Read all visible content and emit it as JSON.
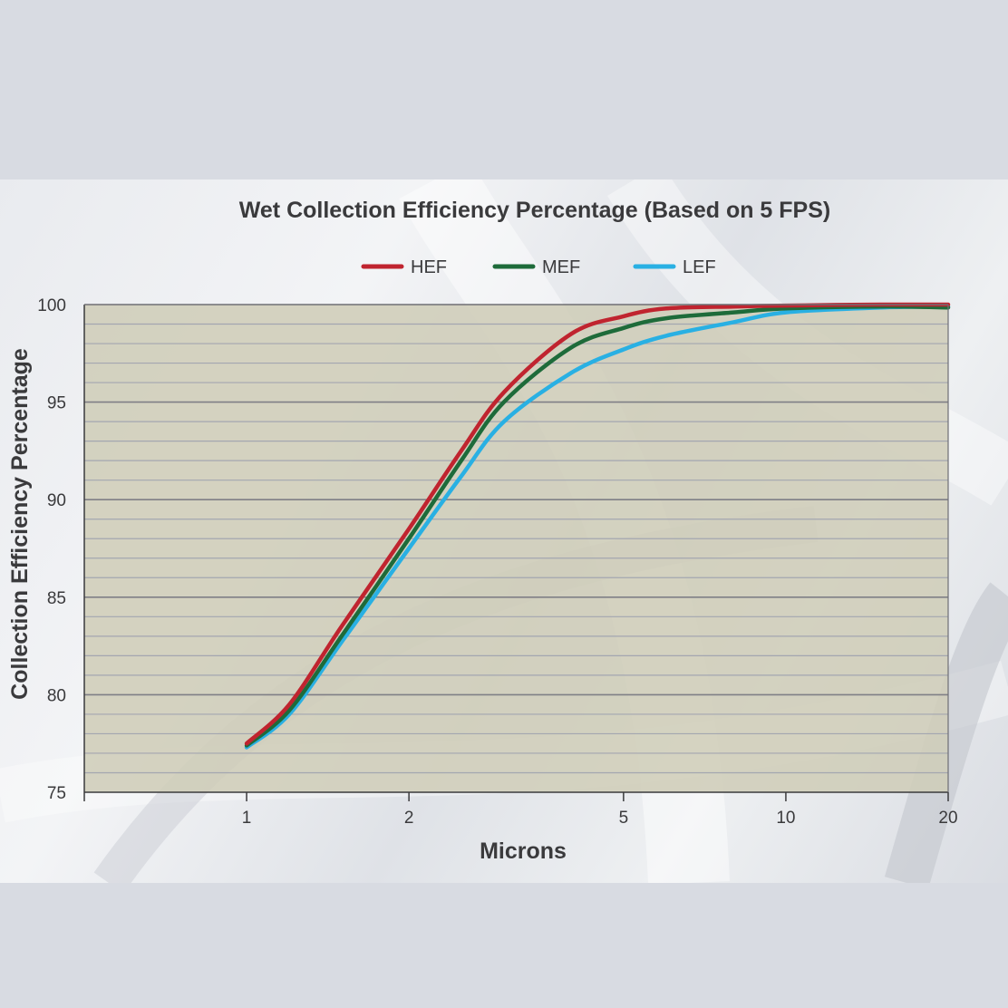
{
  "chart_data": {
    "type": "line",
    "title": "Wet Collection Efficiency Percentage  (Based on 5 FPS)",
    "xlabel": "Microns",
    "ylabel": "Collection Efficiency Percentage",
    "x_scale": "log",
    "x_ticks": [
      1,
      2,
      5,
      10,
      20
    ],
    "x_tick_labels": [
      "1",
      "2",
      "5",
      "10",
      "20"
    ],
    "y_ticks": [
      75,
      80,
      85,
      90,
      95,
      100
    ],
    "y_tick_labels": [
      "75",
      "80",
      "85",
      "90",
      "95",
      "100"
    ],
    "xlim": [
      0.5,
      20
    ],
    "ylim": [
      75,
      100
    ],
    "grid": true,
    "legend_position": "top-center",
    "plot_background": "#cfcdb8",
    "series": [
      {
        "name": "HEF",
        "color": "#c0242f",
        "x": [
          1,
          1.2,
          1.5,
          2,
          2.5,
          3,
          4,
          5,
          6,
          8,
          10,
          15,
          20
        ],
        "y": [
          77.5,
          79.5,
          83.5,
          88.5,
          92.5,
          95.5,
          98.5,
          99.4,
          99.8,
          99.9,
          99.95,
          100,
          100
        ]
      },
      {
        "name": "MEF",
        "color": "#1e6b3a",
        "x": [
          1,
          1.2,
          1.5,
          2,
          2.5,
          3,
          4,
          5,
          6,
          8,
          10,
          15,
          20
        ],
        "y": [
          77.4,
          79.2,
          83.0,
          88.0,
          92.0,
          95.0,
          97.8,
          98.8,
          99.3,
          99.6,
          99.8,
          99.9,
          99.85
        ]
      },
      {
        "name": "LEF",
        "color": "#29b0e3",
        "x": [
          1,
          1.2,
          1.5,
          2,
          2.5,
          3,
          4,
          5,
          6,
          8,
          10,
          15,
          20
        ],
        "y": [
          77.3,
          79.0,
          82.7,
          87.5,
          91.2,
          94.0,
          96.5,
          97.7,
          98.4,
          99.1,
          99.6,
          99.85,
          99.9
        ]
      }
    ]
  }
}
